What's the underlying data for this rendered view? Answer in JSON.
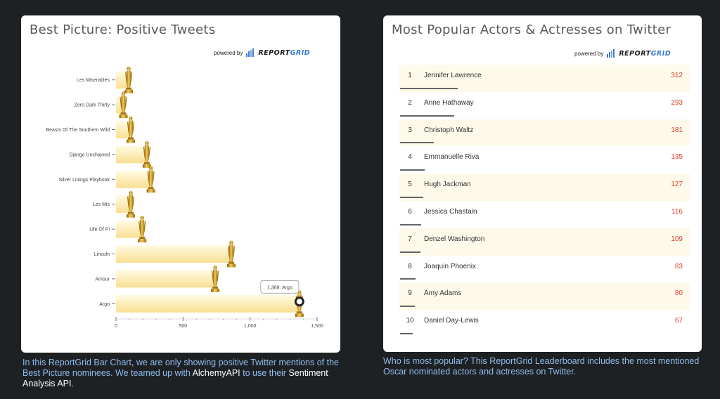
{
  "left_panel": {
    "title": "Best Picture: Positive Tweets",
    "powered_by": "powered by",
    "logo_text_a": "REPORT",
    "logo_text_b": "GRID"
  },
  "right_panel": {
    "title": "Most Popular Actors & Actresses on Twitter",
    "powered_by": "powered by",
    "logo_text_a": "REPORT",
    "logo_text_b": "GRID"
  },
  "chart_data": {
    "type": "bar",
    "orientation": "horizontal",
    "title": "Best Picture: Positive Tweets",
    "categories": [
      "Les Miserables",
      "Zero Dark Thirty",
      "Beasts Of The Southern Wild",
      "Django Unchained",
      "Silver Linings Playbook",
      "Les Mis",
      "Life Of Pi",
      "Lincoln",
      "Amour",
      "Argo"
    ],
    "values": [
      95,
      55,
      110,
      230,
      260,
      110,
      195,
      860,
      740,
      1368
    ],
    "xlim": [
      0,
      1500
    ],
    "x_ticks": [
      "0",
      "500",
      "1,000",
      "1,500"
    ],
    "bar_marker": "oscar-statuette-icon",
    "tooltip": "1,368: Argo",
    "colors": {
      "bar_light": "#fffbe3",
      "bar_dark": "#f9df92",
      "gold": "#c9951c"
    }
  },
  "leaderboard": {
    "rows": [
      {
        "rank": "1",
        "name": "Jennifer Lawrence",
        "value": "312"
      },
      {
        "rank": "2",
        "name": "Anne Hathaway",
        "value": "293"
      },
      {
        "rank": "3",
        "name": "Christoph Waltz",
        "value": "181"
      },
      {
        "rank": "4",
        "name": "Emmanuelle Riva",
        "value": "135"
      },
      {
        "rank": "5",
        "name": "Hugh Jackman",
        "value": "127"
      },
      {
        "rank": "6",
        "name": "Jessica Chastain",
        "value": "116"
      },
      {
        "rank": "7",
        "name": "Denzel Washington",
        "value": "109"
      },
      {
        "rank": "8",
        "name": "Joaquin Phoenix",
        "value": "83"
      },
      {
        "rank": "9",
        "name": "Amy Adams",
        "value": "80"
      },
      {
        "rank": "10",
        "name": "Daniel Day-Lewis",
        "value": "67"
      }
    ],
    "colors": {
      "value": "#e0412d",
      "row_alt": "#fdfaea"
    }
  },
  "captions": {
    "left_a": "In this ReportGrid Bar Chart, we are only showing positive Twitter mentions of the Best Picture nominees. We teamed up with ",
    "left_link1": "AlchemyAPI",
    "left_b": " to use their ",
    "left_link2": "Sentiment Analysis API",
    "left_c": ".",
    "right": "Who is most popular? This ReportGrid Leaderboard includes the most mentioned Oscar nominated actors and actresses on Twitter."
  }
}
